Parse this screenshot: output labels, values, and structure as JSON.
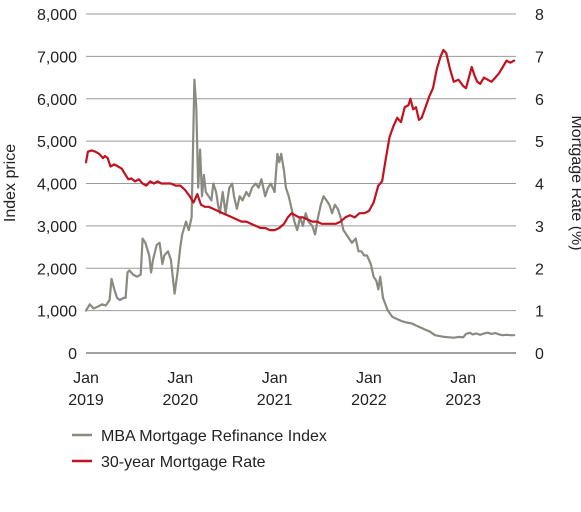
{
  "chart_data": {
    "type": "line",
    "title": "",
    "xlabel": "",
    "ylabel_left": "Index price",
    "ylabel_right": "Mortgage Rate (%)",
    "x_range": [
      2019.0,
      2023.56
    ],
    "ylim_left": [
      0,
      8000
    ],
    "ylim_right": [
      0,
      8
    ],
    "grid": true,
    "legend_position": "bottom-left",
    "left_ticks": [
      {
        "value": 0,
        "label": "0"
      },
      {
        "value": 1000,
        "label": "1,000"
      },
      {
        "value": 2000,
        "label": "2,000"
      },
      {
        "value": 3000,
        "label": "3,000"
      },
      {
        "value": 4000,
        "label": "4,000"
      },
      {
        "value": 5000,
        "label": "5,000"
      },
      {
        "value": 6000,
        "label": "6,000"
      },
      {
        "value": 7000,
        "label": "7,000"
      },
      {
        "value": 8000,
        "label": "8,000"
      }
    ],
    "right_ticks": [
      {
        "value": 0,
        "label": "0"
      },
      {
        "value": 1,
        "label": "1"
      },
      {
        "value": 2,
        "label": "2"
      },
      {
        "value": 3,
        "label": "3"
      },
      {
        "value": 4,
        "label": "4"
      },
      {
        "value": 5,
        "label": "5"
      },
      {
        "value": 6,
        "label": "6"
      },
      {
        "value": 7,
        "label": "7"
      },
      {
        "value": 8,
        "label": "8"
      }
    ],
    "x_ticks": [
      {
        "value": 2019,
        "month": "Jan",
        "year": "2019"
      },
      {
        "value": 2020,
        "month": "Jan",
        "year": "2020"
      },
      {
        "value": 2021,
        "month": "Jan",
        "year": "2021"
      },
      {
        "value": 2022,
        "month": "Jan",
        "year": "2022"
      },
      {
        "value": 2023,
        "month": "Jan",
        "year": "2023"
      }
    ],
    "series": [
      {
        "name": "MBA Mortgage Refinance Index",
        "axis": "left",
        "color": "#8a8a80",
        "points": [
          [
            2019.0,
            1000
          ],
          [
            2019.04,
            1150
          ],
          [
            2019.08,
            1050
          ],
          [
            2019.13,
            1100
          ],
          [
            2019.17,
            1150
          ],
          [
            2019.21,
            1120
          ],
          [
            2019.25,
            1250
          ],
          [
            2019.27,
            1750
          ],
          [
            2019.3,
            1500
          ],
          [
            2019.33,
            1300
          ],
          [
            2019.36,
            1250
          ],
          [
            2019.4,
            1300
          ],
          [
            2019.42,
            1300
          ],
          [
            2019.44,
            1900
          ],
          [
            2019.46,
            1950
          ],
          [
            2019.5,
            1850
          ],
          [
            2019.54,
            1800
          ],
          [
            2019.58,
            1850
          ],
          [
            2019.6,
            2700
          ],
          [
            2019.63,
            2600
          ],
          [
            2019.67,
            2300
          ],
          [
            2019.69,
            1900
          ],
          [
            2019.71,
            2200
          ],
          [
            2019.75,
            2550
          ],
          [
            2019.78,
            2600
          ],
          [
            2019.81,
            2100
          ],
          [
            2019.83,
            2300
          ],
          [
            2019.87,
            2400
          ],
          [
            2019.9,
            2200
          ],
          [
            2019.94,
            1400
          ],
          [
            2019.97,
            1900
          ],
          [
            2020.0,
            2500
          ],
          [
            2020.02,
            2800
          ],
          [
            2020.06,
            3100
          ],
          [
            2020.09,
            2900
          ],
          [
            2020.12,
            3200
          ],
          [
            2020.15,
            6450
          ],
          [
            2020.17,
            5800
          ],
          [
            2020.19,
            3900
          ],
          [
            2020.21,
            4800
          ],
          [
            2020.23,
            3700
          ],
          [
            2020.25,
            4200
          ],
          [
            2020.27,
            3800
          ],
          [
            2020.3,
            3700
          ],
          [
            2020.33,
            3600
          ],
          [
            2020.35,
            4000
          ],
          [
            2020.38,
            3800
          ],
          [
            2020.4,
            3500
          ],
          [
            2020.42,
            3300
          ],
          [
            2020.45,
            3800
          ],
          [
            2020.48,
            3300
          ],
          [
            2020.5,
            3600
          ],
          [
            2020.52,
            3900
          ],
          [
            2020.55,
            4000
          ],
          [
            2020.57,
            3700
          ],
          [
            2020.6,
            3400
          ],
          [
            2020.63,
            3700
          ],
          [
            2020.66,
            3600
          ],
          [
            2020.7,
            3800
          ],
          [
            2020.73,
            3700
          ],
          [
            2020.76,
            3900
          ],
          [
            2020.8,
            4000
          ],
          [
            2020.83,
            3900
          ],
          [
            2020.86,
            4100
          ],
          [
            2020.9,
            3700
          ],
          [
            2020.93,
            3900
          ],
          [
            2020.96,
            4000
          ],
          [
            2021.0,
            3800
          ],
          [
            2021.03,
            4700
          ],
          [
            2021.05,
            4500
          ],
          [
            2021.07,
            4700
          ],
          [
            2021.1,
            4300
          ],
          [
            2021.12,
            3900
          ],
          [
            2021.15,
            3700
          ],
          [
            2021.18,
            3400
          ],
          [
            2021.21,
            3100
          ],
          [
            2021.24,
            2900
          ],
          [
            2021.27,
            3200
          ],
          [
            2021.3,
            3000
          ],
          [
            2021.33,
            3300
          ],
          [
            2021.36,
            3100
          ],
          [
            2021.4,
            3000
          ],
          [
            2021.43,
            2800
          ],
          [
            2021.46,
            3200
          ],
          [
            2021.49,
            3500
          ],
          [
            2021.52,
            3700
          ],
          [
            2021.55,
            3600
          ],
          [
            2021.58,
            3500
          ],
          [
            2021.61,
            3300
          ],
          [
            2021.64,
            3500
          ],
          [
            2021.67,
            3400
          ],
          [
            2021.7,
            3200
          ],
          [
            2021.73,
            2900
          ],
          [
            2021.76,
            2800
          ],
          [
            2021.79,
            2700
          ],
          [
            2021.82,
            2600
          ],
          [
            2021.86,
            2700
          ],
          [
            2021.89,
            2400
          ],
          [
            2021.92,
            2400
          ],
          [
            2021.95,
            2300
          ],
          [
            2021.98,
            2300
          ],
          [
            2022.02,
            2100
          ],
          [
            2022.05,
            1800
          ],
          [
            2022.08,
            1700
          ],
          [
            2022.1,
            1500
          ],
          [
            2022.12,
            1800
          ],
          [
            2022.15,
            1300
          ],
          [
            2022.2,
            1000
          ],
          [
            2022.25,
            850
          ],
          [
            2022.3,
            800
          ],
          [
            2022.35,
            750
          ],
          [
            2022.4,
            720
          ],
          [
            2022.45,
            700
          ],
          [
            2022.5,
            650
          ],
          [
            2022.55,
            600
          ],
          [
            2022.6,
            550
          ],
          [
            2022.65,
            500
          ],
          [
            2022.7,
            420
          ],
          [
            2022.75,
            400
          ],
          [
            2022.8,
            380
          ],
          [
            2022.85,
            370
          ],
          [
            2022.9,
            360
          ],
          [
            2022.95,
            380
          ],
          [
            2023.0,
            370
          ],
          [
            2023.03,
            450
          ],
          [
            2023.07,
            480
          ],
          [
            2023.1,
            440
          ],
          [
            2023.14,
            460
          ],
          [
            2023.18,
            430
          ],
          [
            2023.22,
            460
          ],
          [
            2023.26,
            480
          ],
          [
            2023.3,
            450
          ],
          [
            2023.34,
            470
          ],
          [
            2023.38,
            440
          ],
          [
            2023.42,
            420
          ],
          [
            2023.46,
            430
          ],
          [
            2023.5,
            420
          ],
          [
            2023.54,
            420
          ]
        ]
      },
      {
        "name": "30-year Mortgage Rate",
        "axis": "right",
        "color": "#c0121f",
        "points": [
          [
            2019.0,
            4.5
          ],
          [
            2019.02,
            4.75
          ],
          [
            2019.06,
            4.78
          ],
          [
            2019.1,
            4.75
          ],
          [
            2019.14,
            4.7
          ],
          [
            2019.18,
            4.6
          ],
          [
            2019.2,
            4.65
          ],
          [
            2019.23,
            4.6
          ],
          [
            2019.26,
            4.4
          ],
          [
            2019.3,
            4.45
          ],
          [
            2019.34,
            4.4
          ],
          [
            2019.38,
            4.35
          ],
          [
            2019.42,
            4.2
          ],
          [
            2019.45,
            4.1
          ],
          [
            2019.48,
            4.12
          ],
          [
            2019.52,
            4.05
          ],
          [
            2019.56,
            4.1
          ],
          [
            2019.6,
            4.0
          ],
          [
            2019.64,
            3.95
          ],
          [
            2019.68,
            4.05
          ],
          [
            2019.72,
            4.0
          ],
          [
            2019.76,
            4.05
          ],
          [
            2019.8,
            4.0
          ],
          [
            2019.85,
            4.0
          ],
          [
            2019.9,
            4.0
          ],
          [
            2019.95,
            3.95
          ],
          [
            2020.0,
            3.95
          ],
          [
            2020.05,
            3.85
          ],
          [
            2020.1,
            3.7
          ],
          [
            2020.14,
            3.55
          ],
          [
            2020.18,
            3.75
          ],
          [
            2020.22,
            3.5
          ],
          [
            2020.26,
            3.45
          ],
          [
            2020.3,
            3.45
          ],
          [
            2020.35,
            3.4
          ],
          [
            2020.4,
            3.35
          ],
          [
            2020.45,
            3.3
          ],
          [
            2020.5,
            3.25
          ],
          [
            2020.55,
            3.2
          ],
          [
            2020.6,
            3.15
          ],
          [
            2020.65,
            3.1
          ],
          [
            2020.7,
            3.1
          ],
          [
            2020.75,
            3.05
          ],
          [
            2020.8,
            3.0
          ],
          [
            2020.85,
            2.95
          ],
          [
            2020.9,
            2.95
          ],
          [
            2020.95,
            2.9
          ],
          [
            2021.0,
            2.9
          ],
          [
            2021.05,
            2.95
          ],
          [
            2021.1,
            3.05
          ],
          [
            2021.14,
            3.2
          ],
          [
            2021.18,
            3.3
          ],
          [
            2021.22,
            3.25
          ],
          [
            2021.26,
            3.2
          ],
          [
            2021.3,
            3.2
          ],
          [
            2021.35,
            3.15
          ],
          [
            2021.4,
            3.1
          ],
          [
            2021.45,
            3.1
          ],
          [
            2021.5,
            3.05
          ],
          [
            2021.55,
            3.05
          ],
          [
            2021.6,
            3.05
          ],
          [
            2021.65,
            3.05
          ],
          [
            2021.7,
            3.1
          ],
          [
            2021.75,
            3.2
          ],
          [
            2021.8,
            3.25
          ],
          [
            2021.85,
            3.2
          ],
          [
            2021.9,
            3.3
          ],
          [
            2021.95,
            3.3
          ],
          [
            2022.0,
            3.35
          ],
          [
            2022.05,
            3.55
          ],
          [
            2022.1,
            3.95
          ],
          [
            2022.14,
            4.05
          ],
          [
            2022.18,
            4.6
          ],
          [
            2022.22,
            5.1
          ],
          [
            2022.26,
            5.35
          ],
          [
            2022.3,
            5.55
          ],
          [
            2022.34,
            5.45
          ],
          [
            2022.38,
            5.8
          ],
          [
            2022.42,
            5.85
          ],
          [
            2022.44,
            6.0
          ],
          [
            2022.47,
            5.75
          ],
          [
            2022.5,
            5.8
          ],
          [
            2022.53,
            5.5
          ],
          [
            2022.56,
            5.55
          ],
          [
            2022.6,
            5.8
          ],
          [
            2022.64,
            6.05
          ],
          [
            2022.68,
            6.25
          ],
          [
            2022.72,
            6.7
          ],
          [
            2022.76,
            7.0
          ],
          [
            2022.79,
            7.15
          ],
          [
            2022.82,
            7.08
          ],
          [
            2022.86,
            6.7
          ],
          [
            2022.9,
            6.4
          ],
          [
            2022.95,
            6.45
          ],
          [
            2023.0,
            6.3
          ],
          [
            2023.03,
            6.25
          ],
          [
            2023.06,
            6.5
          ],
          [
            2023.09,
            6.75
          ],
          [
            2023.12,
            6.55
          ],
          [
            2023.15,
            6.4
          ],
          [
            2023.18,
            6.35
          ],
          [
            2023.22,
            6.5
          ],
          [
            2023.26,
            6.45
          ],
          [
            2023.3,
            6.4
          ],
          [
            2023.34,
            6.5
          ],
          [
            2023.38,
            6.6
          ],
          [
            2023.42,
            6.75
          ],
          [
            2023.46,
            6.9
          ],
          [
            2023.5,
            6.85
          ],
          [
            2023.54,
            6.9
          ]
        ]
      }
    ]
  }
}
